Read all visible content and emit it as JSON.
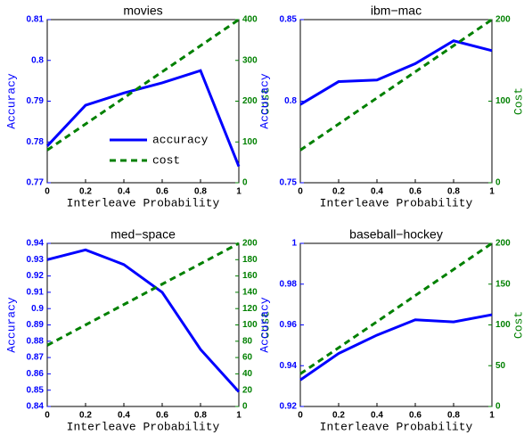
{
  "chart_data": [
    {
      "type": "line",
      "title": "movies",
      "xlabel": "Interleave Probability",
      "ylabel": "Accuracy",
      "y2label": "Cost",
      "x": [
        0,
        0.2,
        0.4,
        0.6,
        0.8,
        1
      ],
      "series": [
        {
          "name": "accuracy",
          "color": "#0000ff",
          "linestyle": "solid",
          "values": [
            0.779,
            0.789,
            0.792,
            0.7945,
            0.7975,
            0.774
          ]
        },
        {
          "name": "cost",
          "color": "#008000",
          "linestyle": "dashed",
          "axis": "y2",
          "values": [
            80,
            144,
            208,
            272,
            336,
            400
          ]
        }
      ],
      "xlim": [
        0,
        1
      ],
      "xticks": [
        0,
        0.2,
        0.4,
        0.6,
        0.8,
        1
      ],
      "ylim": [
        0.77,
        0.81
      ],
      "yticks": [
        0.77,
        0.78,
        0.79,
        0.8,
        0.81
      ],
      "y2lim": [
        0,
        400
      ],
      "y2ticks": [
        0,
        100,
        200,
        300,
        400
      ],
      "legend": "lower right"
    },
    {
      "type": "line",
      "title": "ibm−mac",
      "xlabel": "Interleave Probability",
      "ylabel": "Accuracy",
      "y2label": "Cost",
      "x": [
        0,
        0.2,
        0.4,
        0.6,
        0.8,
        1
      ],
      "series": [
        {
          "name": "accuracy",
          "color": "#0000ff",
          "linestyle": "solid",
          "values": [
            0.798,
            0.812,
            0.813,
            0.823,
            0.837,
            0.831
          ]
        },
        {
          "name": "cost",
          "color": "#008000",
          "linestyle": "dashed",
          "axis": "y2",
          "values": [
            40,
            72,
            104,
            136,
            168,
            200
          ]
        }
      ],
      "xlim": [
        0,
        1
      ],
      "xticks": [
        0,
        0.2,
        0.4,
        0.6,
        0.8,
        1
      ],
      "ylim": [
        0.75,
        0.85
      ],
      "yticks": [
        0.75,
        0.8,
        0.85
      ],
      "y2lim": [
        0,
        200
      ],
      "y2ticks": [
        0,
        100,
        200
      ]
    },
    {
      "type": "line",
      "title": "med−space",
      "xlabel": "Interleave Probability",
      "ylabel": "Accuracy",
      "y2label": "Cost",
      "x": [
        0,
        0.2,
        0.4,
        0.6,
        0.8,
        1
      ],
      "series": [
        {
          "name": "accuracy",
          "color": "#0000ff",
          "linestyle": "solid",
          "values": [
            0.93,
            0.936,
            0.927,
            0.91,
            0.875,
            0.849
          ]
        },
        {
          "name": "cost",
          "color": "#008000",
          "linestyle": "dashed",
          "axis": "y2",
          "values": [
            75,
            100,
            125,
            150,
            175,
            200
          ]
        }
      ],
      "xlim": [
        0,
        1
      ],
      "xticks": [
        0,
        0.2,
        0.4,
        0.6,
        0.8,
        1
      ],
      "ylim": [
        0.84,
        0.94
      ],
      "yticks": [
        0.84,
        0.85,
        0.86,
        0.87,
        0.88,
        0.89,
        0.9,
        0.91,
        0.92,
        0.93,
        0.94
      ],
      "y2lim": [
        0,
        200
      ],
      "y2ticks": [
        0,
        20,
        40,
        60,
        80,
        100,
        120,
        140,
        160,
        180,
        200
      ]
    },
    {
      "type": "line",
      "title": "baseball−hockey",
      "xlabel": "Interleave Probability",
      "ylabel": "Accuracy",
      "y2label": "Cost",
      "x": [
        0,
        0.2,
        0.4,
        0.6,
        0.8,
        1
      ],
      "series": [
        {
          "name": "accuracy",
          "color": "#0000ff",
          "linestyle": "solid",
          "values": [
            0.933,
            0.946,
            0.955,
            0.9625,
            0.9615,
            0.965
          ]
        },
        {
          "name": "cost",
          "color": "#008000",
          "linestyle": "dashed",
          "axis": "y2",
          "values": [
            40,
            72,
            104,
            136,
            168,
            200
          ]
        }
      ],
      "xlim": [
        0,
        1
      ],
      "xticks": [
        0,
        0.2,
        0.4,
        0.6,
        0.8,
        1
      ],
      "ylim": [
        0.92,
        1
      ],
      "yticks": [
        0.92,
        0.94,
        0.96,
        0.98,
        1
      ],
      "y2lim": [
        0,
        200
      ],
      "y2ticks": [
        0,
        50,
        100,
        150,
        200
      ]
    }
  ]
}
